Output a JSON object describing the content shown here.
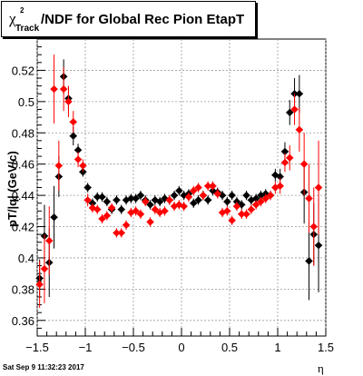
{
  "title": {
    "chi": "χ",
    "sup": "2",
    "sub": "Track",
    "main": "/NDF for Global Rec Pion EtapT"
  },
  "footer": "Sat Sep  9 11:32:23 2017",
  "chart_data": {
    "type": "scatter",
    "title": "χ²Track/NDF for Global Rec Pion EtapT",
    "xlabel": "η",
    "ylabel": "pT/|q| (GeV/c)",
    "xlim": [
      -1.5,
      1.5
    ],
    "ylim": [
      0.35,
      0.54
    ],
    "xticks": [
      "−1.5",
      "−1",
      "−0.5",
      "0",
      "0.5",
      "1",
      "1.5"
    ],
    "xtick_values": [
      -1.5,
      -1,
      -0.5,
      0,
      0.5,
      1,
      1.5
    ],
    "yticks": [
      "0.36",
      "0.38",
      "0.4",
      "0.42",
      "0.44",
      "0.46",
      "0.48",
      "0.5",
      "0.52"
    ],
    "ytick_values": [
      0.36,
      0.38,
      0.4,
      0.42,
      0.44,
      0.46,
      0.48,
      0.5,
      0.52
    ],
    "grid": true,
    "series": [
      {
        "color": "#000000",
        "points": [
          [
            -1.475,
            0.387,
            0.012
          ],
          [
            -1.425,
            0.414,
            0.02
          ],
          [
            -1.375,
            0.397,
            0.022
          ],
          [
            -1.325,
            0.426,
            0.02
          ],
          [
            -1.275,
            0.452,
            0.013
          ],
          [
            -1.225,
            0.516,
            0.011
          ],
          [
            -1.175,
            0.502,
            0.008
          ],
          [
            -1.125,
            0.478,
            0.006
          ],
          [
            -1.075,
            0.469,
            0.004
          ],
          [
            -1.025,
            0.455,
            0.003
          ],
          [
            -0.975,
            0.445,
            0.003
          ],
          [
            -0.925,
            0.435,
            0.003
          ],
          [
            -0.875,
            0.439,
            0.003
          ],
          [
            -0.825,
            0.439,
            0.003
          ],
          [
            -0.775,
            0.436,
            0.003
          ],
          [
            -0.725,
            0.431,
            0.003
          ],
          [
            -0.675,
            0.437,
            0.003
          ],
          [
            -0.625,
            0.431,
            0.003
          ],
          [
            -0.575,
            0.437,
            0.003
          ],
          [
            -0.525,
            0.438,
            0.003
          ],
          [
            -0.475,
            0.438,
            0.003
          ],
          [
            -0.425,
            0.44,
            0.003
          ],
          [
            -0.375,
            0.437,
            0.003
          ],
          [
            -0.325,
            0.434,
            0.003
          ],
          [
            -0.275,
            0.437,
            0.003
          ],
          [
            -0.225,
            0.436,
            0.003
          ],
          [
            -0.175,
            0.438,
            0.003
          ],
          [
            -0.125,
            0.437,
            0.003
          ],
          [
            -0.075,
            0.44,
            0.003
          ],
          [
            -0.025,
            0.443,
            0.003
          ],
          [
            0.025,
            0.44,
            0.003
          ],
          [
            0.075,
            0.441,
            0.003
          ],
          [
            0.125,
            0.435,
            0.003
          ],
          [
            0.175,
            0.437,
            0.003
          ],
          [
            0.225,
            0.44,
            0.003
          ],
          [
            0.275,
            0.437,
            0.003
          ],
          [
            0.325,
            0.443,
            0.003
          ],
          [
            0.375,
            0.442,
            0.003
          ],
          [
            0.425,
            0.44,
            0.003
          ],
          [
            0.475,
            0.436,
            0.003
          ],
          [
            0.525,
            0.44,
            0.003
          ],
          [
            0.575,
            0.436,
            0.003
          ],
          [
            0.625,
            0.434,
            0.003
          ],
          [
            0.675,
            0.44,
            0.003
          ],
          [
            0.725,
            0.437,
            0.003
          ],
          [
            0.775,
            0.438,
            0.003
          ],
          [
            0.825,
            0.44,
            0.003
          ],
          [
            0.875,
            0.441,
            0.003
          ],
          [
            0.925,
            0.44,
            0.003
          ],
          [
            0.975,
            0.453,
            0.004
          ],
          [
            1.025,
            0.452,
            0.005
          ],
          [
            1.075,
            0.468,
            0.006
          ],
          [
            1.125,
            0.493,
            0.008
          ],
          [
            1.175,
            0.505,
            0.01
          ],
          [
            1.225,
            0.505,
            0.012
          ],
          [
            1.275,
            0.442,
            0.02
          ],
          [
            1.325,
            0.398,
            0.025
          ],
          [
            1.375,
            0.415,
            0.02
          ],
          [
            1.425,
            0.408,
            0.03
          ]
        ]
      },
      {
        "color": "#ff0000",
        "points": [
          [
            -1.475,
            0.383,
            0.015
          ],
          [
            -1.425,
            0.393,
            0.022
          ],
          [
            -1.375,
            0.411,
            0.022
          ],
          [
            -1.325,
            0.508,
            0.022
          ],
          [
            -1.275,
            0.459,
            0.016
          ],
          [
            -1.225,
            0.508,
            0.014
          ],
          [
            -1.175,
            0.5,
            0.01
          ],
          [
            -1.125,
            0.487,
            0.007
          ],
          [
            -1.075,
            0.463,
            0.005
          ],
          [
            -1.025,
            0.459,
            0.004
          ],
          [
            -0.975,
            0.437,
            0.004
          ],
          [
            -0.925,
            0.432,
            0.003
          ],
          [
            -0.875,
            0.431,
            0.003
          ],
          [
            -0.825,
            0.425,
            0.003
          ],
          [
            -0.775,
            0.427,
            0.003
          ],
          [
            -0.725,
            0.432,
            0.003
          ],
          [
            -0.675,
            0.416,
            0.003
          ],
          [
            -0.625,
            0.416,
            0.003
          ],
          [
            -0.575,
            0.421,
            0.003
          ],
          [
            -0.525,
            0.429,
            0.003
          ],
          [
            -0.475,
            0.43,
            0.003
          ],
          [
            -0.425,
            0.428,
            0.003
          ],
          [
            -0.375,
            0.436,
            0.003
          ],
          [
            -0.325,
            0.423,
            0.003
          ],
          [
            -0.275,
            0.431,
            0.003
          ],
          [
            -0.225,
            0.429,
            0.003
          ],
          [
            -0.175,
            0.43,
            0.003
          ],
          [
            -0.125,
            0.437,
            0.003
          ],
          [
            -0.075,
            0.433,
            0.003
          ],
          [
            -0.025,
            0.434,
            0.003
          ],
          [
            0.025,
            0.433,
            0.003
          ],
          [
            0.075,
            0.439,
            0.003
          ],
          [
            0.125,
            0.443,
            0.003
          ],
          [
            0.175,
            0.445,
            0.003
          ],
          [
            0.225,
            0.44,
            0.003
          ],
          [
            0.275,
            0.446,
            0.003
          ],
          [
            0.325,
            0.446,
            0.003
          ],
          [
            0.375,
            0.441,
            0.003
          ],
          [
            0.425,
            0.429,
            0.003
          ],
          [
            0.475,
            0.43,
            0.003
          ],
          [
            0.525,
            0.424,
            0.003
          ],
          [
            0.575,
            0.433,
            0.003
          ],
          [
            0.625,
            0.428,
            0.003
          ],
          [
            0.675,
            0.428,
            0.003
          ],
          [
            0.725,
            0.431,
            0.003
          ],
          [
            0.775,
            0.434,
            0.003
          ],
          [
            0.825,
            0.436,
            0.003
          ],
          [
            0.875,
            0.438,
            0.003
          ],
          [
            0.925,
            0.44,
            0.003
          ],
          [
            0.975,
            0.445,
            0.004
          ],
          [
            1.025,
            0.446,
            0.005
          ],
          [
            1.075,
            0.461,
            0.006
          ],
          [
            1.125,
            0.464,
            0.008
          ],
          [
            1.175,
            0.495,
            0.01
          ],
          [
            1.225,
            0.482,
            0.014
          ],
          [
            1.275,
            0.46,
            0.02
          ],
          [
            1.325,
            0.438,
            0.022
          ],
          [
            1.375,
            0.42,
            0.025
          ],
          [
            1.425,
            0.445,
            0.03
          ]
        ]
      }
    ]
  }
}
